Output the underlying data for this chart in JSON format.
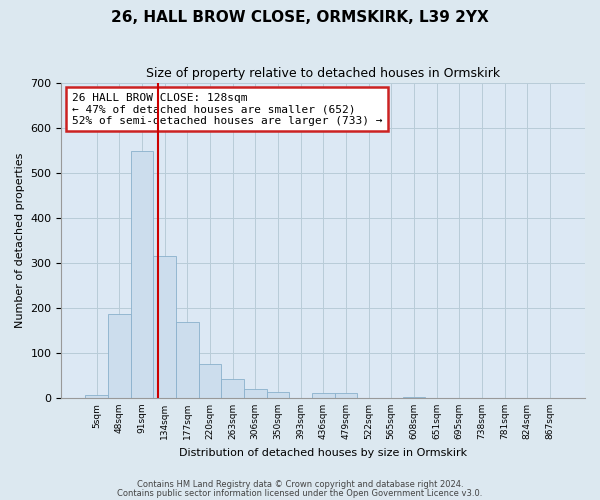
{
  "title": "26, HALL BROW CLOSE, ORMSKIRK, L39 2YX",
  "subtitle": "Size of property relative to detached houses in Ormskirk",
  "xlabel": "Distribution of detached houses by size in Ormskirk",
  "ylabel": "Number of detached properties",
  "bar_labels": [
    "5sqm",
    "48sqm",
    "91sqm",
    "134sqm",
    "177sqm",
    "220sqm",
    "263sqm",
    "306sqm",
    "350sqm",
    "393sqm",
    "436sqm",
    "479sqm",
    "522sqm",
    "565sqm",
    "608sqm",
    "651sqm",
    "695sqm",
    "738sqm",
    "781sqm",
    "824sqm",
    "867sqm"
  ],
  "bar_values": [
    7,
    187,
    549,
    316,
    168,
    75,
    41,
    20,
    14,
    0,
    12,
    10,
    0,
    0,
    3,
    0,
    0,
    0,
    0,
    0,
    0
  ],
  "bar_color": "#ccdded",
  "bar_edge_color": "#8ab0cc",
  "vline_x": 2.72,
  "vline_color": "#cc0000",
  "annotation_text": "26 HALL BROW CLOSE: 128sqm\n← 47% of detached houses are smaller (652)\n52% of semi-detached houses are larger (733) →",
  "ylim": [
    0,
    700
  ],
  "yticks": [
    0,
    100,
    200,
    300,
    400,
    500,
    600,
    700
  ],
  "footer_line1": "Contains HM Land Registry data © Crown copyright and database right 2024.",
  "footer_line2": "Contains public sector information licensed under the Open Government Licence v3.0.",
  "bg_color": "#dce8f0",
  "plot_bg_color": "#dce8f4",
  "grid_color": "#b8ccd8"
}
